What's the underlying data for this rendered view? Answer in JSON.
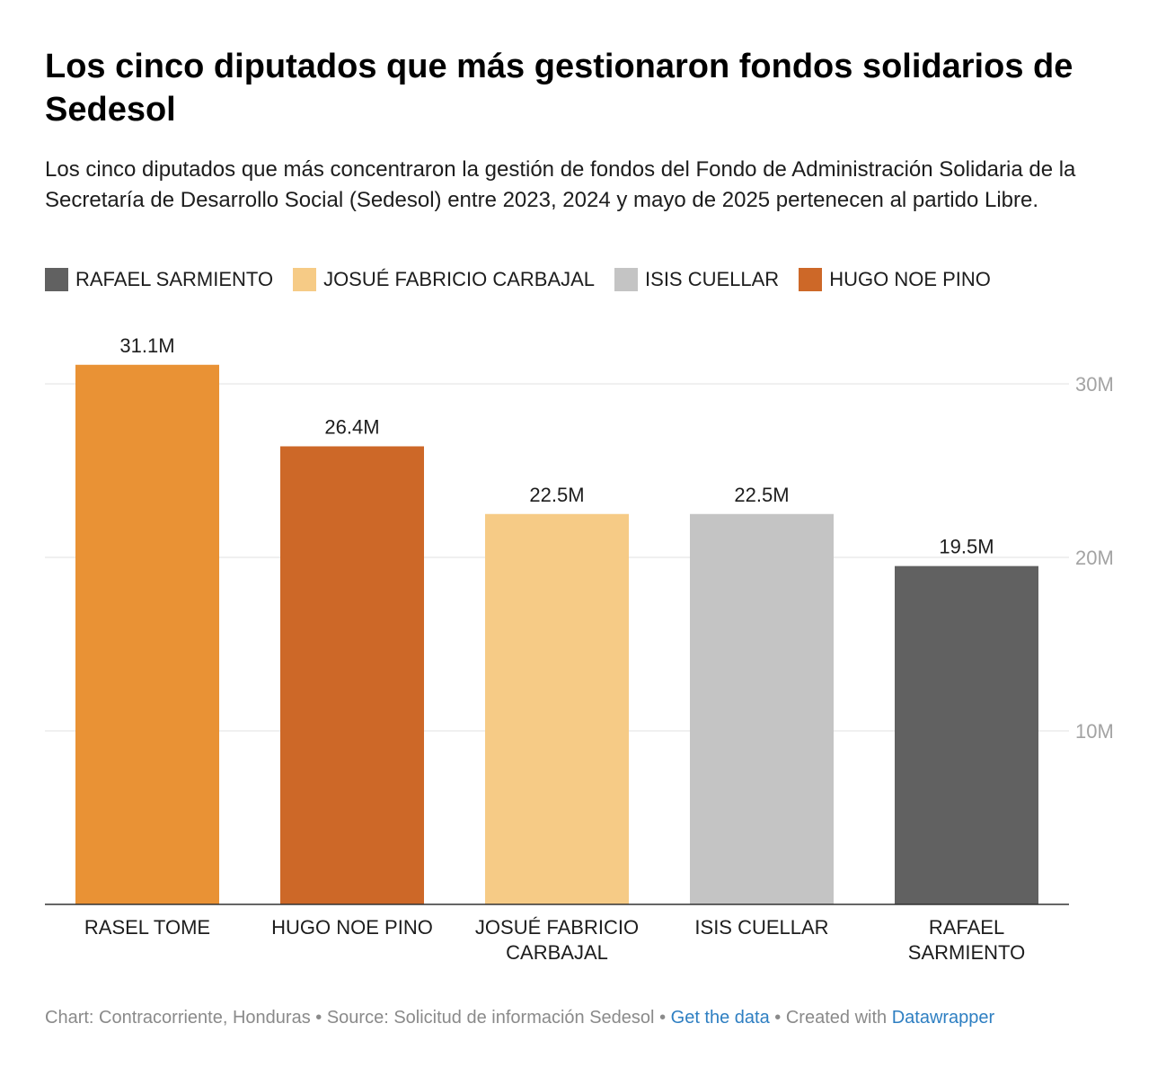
{
  "title": "Los cinco diputados que más gestionaron fondos solidarios de Sedesol",
  "subtitle": "Los cinco diputados que más concentraron la gestión de fondos del Fondo de Administración Solidaria de la Secretaría de Desarrollo Social (Sedesol) entre 2023, 2024 y mayo de 2025 pertenecen al partido Libre.",
  "legend": [
    {
      "label": "RAFAEL SARMIENTO",
      "color": "#616161"
    },
    {
      "label": "JOSUÉ FABRICIO CARBAJAL",
      "color": "#f6cb86"
    },
    {
      "label": "ISIS CUELLAR",
      "color": "#c4c4c4"
    },
    {
      "label": "HUGO NOE PINO",
      "color": "#cd6828"
    }
  ],
  "chart_data": {
    "type": "bar",
    "categories": [
      "RASEL TOME",
      "HUGO NOE PINO",
      "JOSUÉ FABRICIO CARBAJAL",
      "ISIS CUELLAR",
      "RAFAEL SARMIENTO"
    ],
    "category_lines": [
      [
        "RASEL TOME"
      ],
      [
        "HUGO NOE PINO"
      ],
      [
        "JOSUÉ FABRICIO",
        "CARBAJAL"
      ],
      [
        "ISIS CUELLAR"
      ],
      [
        "RAFAEL",
        "SARMIENTO"
      ]
    ],
    "values": [
      31.1,
      26.4,
      22.5,
      22.5,
      19.5
    ],
    "value_labels": [
      "31.1M",
      "26.4M",
      "22.5M",
      "22.5M",
      "19.5M"
    ],
    "colors": [
      "#e99235",
      "#cd6828",
      "#f6cb86",
      "#c4c4c4",
      "#616161"
    ],
    "unit": "M",
    "ylim": [
      0,
      30
    ],
    "yticks": [
      {
        "value": 10,
        "label": "10M"
      },
      {
        "value": 20,
        "label": "20M"
      },
      {
        "value": 30,
        "label": "30M"
      }
    ],
    "y_axis_position": "right",
    "grid": true,
    "legend_position": "top-left"
  },
  "footer": {
    "chart_credit": "Chart: Contracorriente, Honduras",
    "source": "Source: Solicitud de información Sedesol",
    "get_data": "Get the data",
    "created_with": "Created with",
    "tool": "Datawrapper",
    "separator": "•"
  }
}
